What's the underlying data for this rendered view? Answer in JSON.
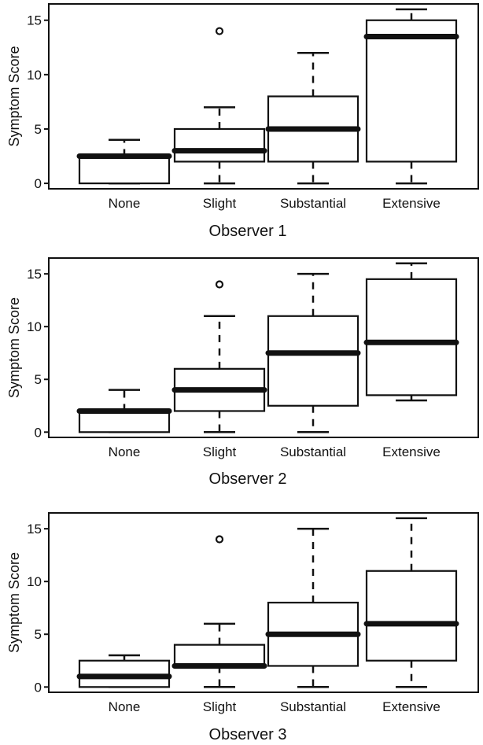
{
  "chart_data": [
    {
      "type": "boxplot",
      "title": "",
      "xlabel": "Observer 1",
      "ylabel": "Symptom Score",
      "ylim": [
        -0.5,
        16.5
      ],
      "yticks": [
        0,
        5,
        10,
        15
      ],
      "categories": [
        "None",
        "Slight",
        "Substantial",
        "Extensive"
      ],
      "boxes": [
        {
          "whisker_low": 0,
          "q1": 0,
          "median": 2.5,
          "q3": 2.5,
          "whisker_high": 4,
          "outliers": []
        },
        {
          "whisker_low": 0,
          "q1": 2,
          "median": 3,
          "q3": 5,
          "whisker_high": 7,
          "outliers": [
            14
          ]
        },
        {
          "whisker_low": 0,
          "q1": 2,
          "median": 5,
          "q3": 8,
          "whisker_high": 12,
          "outliers": []
        },
        {
          "whisker_low": 0,
          "q1": 2,
          "median": 13.5,
          "q3": 15,
          "whisker_high": 16,
          "outliers": []
        }
      ]
    },
    {
      "type": "boxplot",
      "title": "",
      "xlabel": "Observer 2",
      "ylabel": "Symptom Score",
      "ylim": [
        -0.5,
        16.5
      ],
      "yticks": [
        0,
        5,
        10,
        15
      ],
      "categories": [
        "None",
        "Slight",
        "Substantial",
        "Extensive"
      ],
      "boxes": [
        {
          "whisker_low": 0,
          "q1": 0,
          "median": 2,
          "q3": 2,
          "whisker_high": 4,
          "outliers": []
        },
        {
          "whisker_low": 0,
          "q1": 2,
          "median": 4,
          "q3": 6,
          "whisker_high": 11,
          "outliers": [
            14
          ]
        },
        {
          "whisker_low": 0,
          "q1": 2.5,
          "median": 7.5,
          "q3": 11,
          "whisker_high": 15,
          "outliers": []
        },
        {
          "whisker_low": 3,
          "q1": 3.5,
          "median": 8.5,
          "q3": 14.5,
          "whisker_high": 16,
          "outliers": []
        }
      ]
    },
    {
      "type": "boxplot",
      "title": "",
      "xlabel": "Observer 3",
      "ylabel": "Symptom Score",
      "ylim": [
        -0.5,
        16.5
      ],
      "yticks": [
        0,
        5,
        10,
        15
      ],
      "categories": [
        "None",
        "Slight",
        "Substantial",
        "Extensive"
      ],
      "boxes": [
        {
          "whisker_low": 0,
          "q1": 0,
          "median": 1,
          "q3": 2.5,
          "whisker_high": 3,
          "outliers": []
        },
        {
          "whisker_low": 0,
          "q1": 2,
          "median": 2,
          "q3": 4,
          "whisker_high": 6,
          "outliers": [
            14
          ]
        },
        {
          "whisker_low": 0,
          "q1": 2,
          "median": 5,
          "q3": 8,
          "whisker_high": 15,
          "outliers": []
        },
        {
          "whisker_low": 0,
          "q1": 2.5,
          "median": 6,
          "q3": 11,
          "whisker_high": 16,
          "outliers": []
        }
      ]
    }
  ]
}
